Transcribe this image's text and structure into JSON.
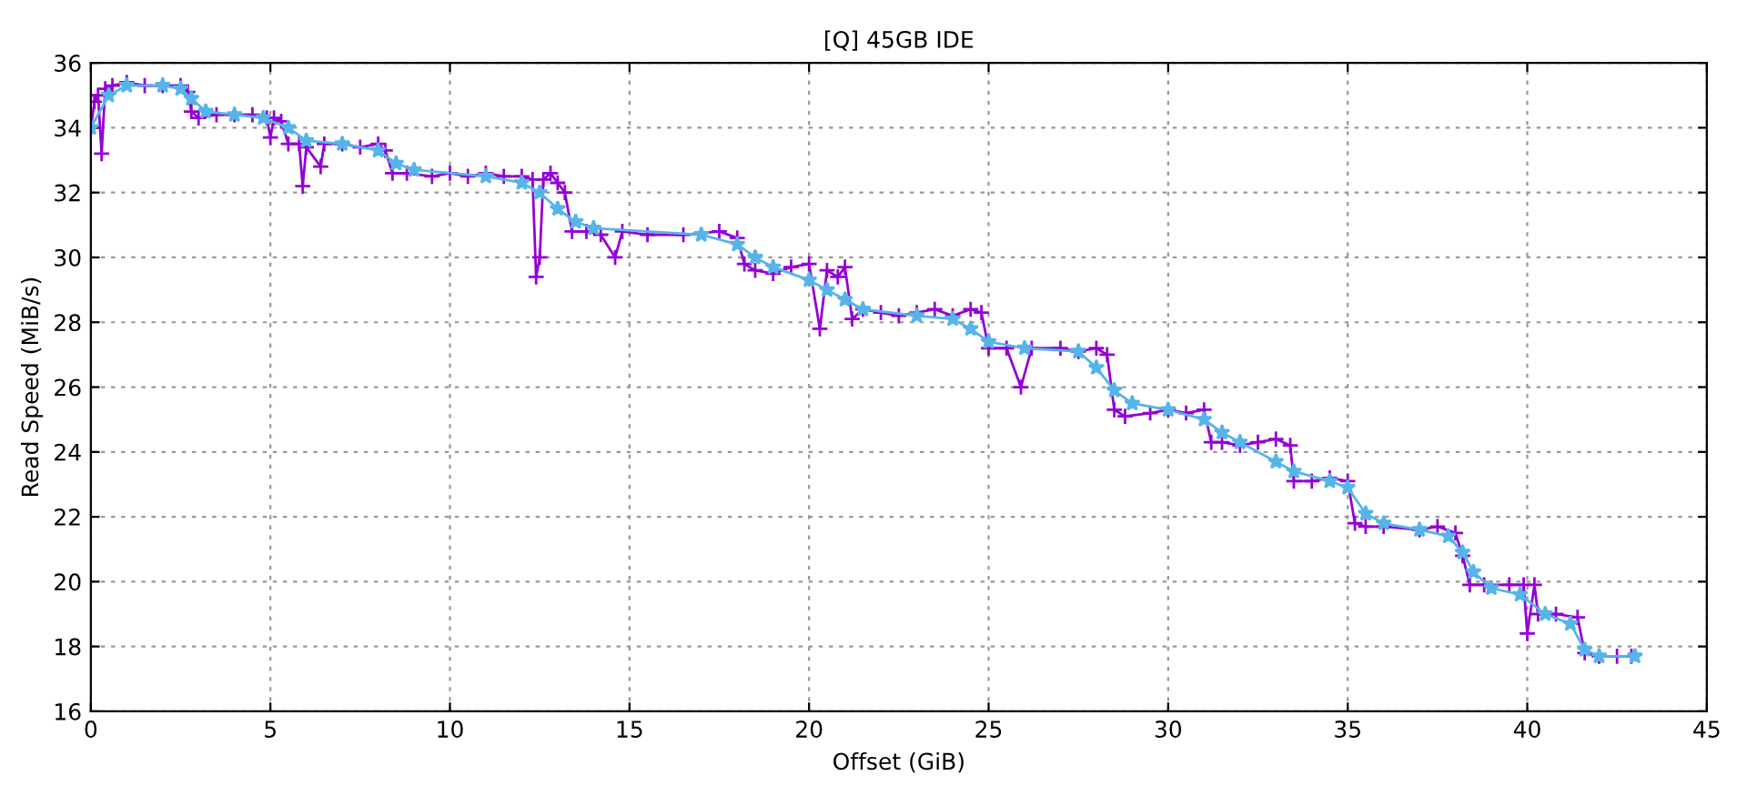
{
  "chart_data": {
    "type": "line",
    "title": "[Q] 45GB IDE",
    "xlabel": "Offset (GiB)",
    "ylabel": "Read Speed (MiB/s)",
    "xlim": [
      0,
      45
    ],
    "xticks": [
      0,
      5,
      10,
      15,
      20,
      25,
      30,
      35,
      40,
      45
    ],
    "ylim": [
      16,
      36
    ],
    "yticks": [
      16,
      18,
      20,
      22,
      24,
      26,
      28,
      30,
      32,
      34,
      36
    ],
    "grid": true,
    "series": [
      {
        "color": "#9400d3",
        "marker": "cross",
        "x": [
          0,
          0.1,
          0.2,
          0.3,
          0.4,
          0.6,
          1.0,
          1.5,
          2.0,
          2.5,
          2.7,
          2.8,
          3.0,
          3.5,
          4.0,
          4.5,
          4.9,
          5.0,
          5.1,
          5.3,
          5.5,
          5.8,
          5.9,
          6.0,
          6.4,
          6.5,
          7.0,
          7.5,
          8.0,
          8.2,
          8.4,
          8.8,
          9.5,
          10.0,
          10.5,
          11.0,
          11.5,
          12.0,
          12.3,
          12.4,
          12.5,
          12.6,
          12.8,
          13.0,
          13.2,
          13.4,
          13.8,
          14.2,
          14.6,
          14.8,
          15.5,
          16.5,
          17.5,
          18.0,
          18.2,
          18.5,
          19.0,
          19.5,
          20.0,
          20.3,
          20.5,
          20.8,
          21.0,
          21.2,
          21.5,
          22.0,
          22.5,
          23.0,
          23.5,
          24.0,
          24.5,
          24.8,
          25.0,
          25.5,
          25.9,
          26.2,
          27.0,
          27.5,
          28.0,
          28.3,
          28.5,
          28.8,
          29.5,
          30.0,
          30.5,
          31.0,
          31.2,
          31.5,
          32.0,
          32.5,
          33.0,
          33.4,
          33.5,
          34.0,
          34.5,
          35.0,
          35.2,
          35.5,
          36.0,
          37.0,
          37.5,
          38.0,
          38.2,
          38.4,
          38.8,
          39.5,
          39.9,
          40.0,
          40.2,
          40.3,
          40.8,
          41.4,
          41.6,
          42.0,
          42.5,
          42.9
        ],
        "values": [
          34.0,
          34.8,
          35.0,
          33.2,
          35.2,
          35.3,
          35.4,
          35.3,
          35.3,
          35.3,
          35.1,
          34.5,
          34.3,
          34.4,
          34.4,
          34.4,
          34.3,
          33.7,
          34.3,
          34.2,
          33.5,
          33.5,
          32.2,
          33.4,
          32.8,
          33.5,
          33.5,
          33.4,
          33.5,
          33.3,
          32.6,
          32.6,
          32.5,
          32.6,
          32.5,
          32.6,
          32.5,
          32.5,
          32.4,
          29.4,
          30.0,
          32.4,
          32.6,
          32.3,
          32.0,
          30.8,
          30.8,
          30.7,
          30.0,
          30.8,
          30.7,
          30.7,
          30.8,
          30.6,
          29.8,
          29.6,
          29.5,
          29.7,
          29.8,
          27.8,
          29.6,
          29.4,
          29.7,
          28.1,
          28.4,
          28.3,
          28.2,
          28.3,
          28.4,
          28.2,
          28.4,
          28.3,
          27.2,
          27.2,
          26.0,
          27.2,
          27.2,
          27.1,
          27.2,
          27.0,
          25.3,
          25.1,
          25.2,
          25.3,
          25.2,
          25.3,
          24.3,
          24.3,
          24.2,
          24.3,
          24.4,
          24.2,
          23.1,
          23.1,
          23.2,
          23.1,
          21.8,
          21.7,
          21.7,
          21.6,
          21.7,
          21.5,
          20.8,
          19.9,
          19.9,
          19.9,
          19.9,
          18.4,
          19.9,
          19.0,
          19.0,
          18.9,
          17.8,
          17.7,
          17.7,
          17.7
        ]
      },
      {
        "color": "#56b4e9",
        "marker": "star",
        "x": [
          0,
          0.5,
          1,
          2,
          2.5,
          2.8,
          3.2,
          4.0,
          4.8,
          5.5,
          6,
          7,
          8,
          8.5,
          9,
          11,
          12,
          12.5,
          13,
          13.5,
          14,
          17,
          18,
          18.5,
          19,
          20,
          20.5,
          21,
          21.5,
          23,
          24,
          24.5,
          25,
          26,
          27.5,
          28,
          28.5,
          29,
          30,
          31,
          31.5,
          32,
          33,
          33.5,
          34.5,
          35,
          35.5,
          36,
          37,
          37.8,
          38.2,
          38.5,
          39,
          39.8,
          40.5,
          41.2,
          41.6,
          42,
          43
        ],
        "values": [
          34.0,
          35.0,
          35.3,
          35.3,
          35.2,
          34.9,
          34.5,
          34.4,
          34.3,
          34.0,
          33.6,
          33.5,
          33.3,
          32.9,
          32.7,
          32.5,
          32.3,
          32.0,
          31.5,
          31.1,
          30.9,
          30.7,
          30.4,
          30.0,
          29.7,
          29.3,
          29.0,
          28.7,
          28.4,
          28.2,
          28.1,
          27.8,
          27.4,
          27.2,
          27.1,
          26.6,
          25.9,
          25.5,
          25.3,
          25.0,
          24.6,
          24.3,
          23.7,
          23.4,
          23.1,
          22.9,
          22.1,
          21.8,
          21.6,
          21.4,
          20.9,
          20.3,
          19.8,
          19.6,
          19.0,
          18.7,
          17.9,
          17.7,
          17.7
        ]
      }
    ]
  }
}
